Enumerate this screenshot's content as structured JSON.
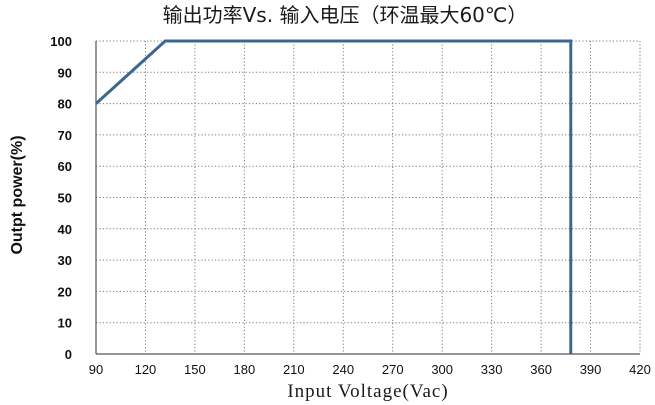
{
  "chart_data": {
    "type": "line",
    "title": "输出功率Vs. 输入电压（环温最大60℃）",
    "xlabel": "Input Voltage(Vac)",
    "ylabel": "Outpt power(%)",
    "xlim": [
      90,
      420
    ],
    "ylim": [
      0,
      100
    ],
    "x_ticks": [
      90,
      120,
      150,
      180,
      210,
      240,
      270,
      300,
      330,
      360,
      390,
      420
    ],
    "x_tick_labels": [
      "90",
      "120",
      "150",
      "180",
      "210",
      "240",
      "270",
      "300",
      "330",
      "360",
      "390",
      "420"
    ],
    "y_ticks": [
      0,
      10,
      20,
      30,
      40,
      50,
      60,
      70,
      80,
      90,
      100
    ],
    "y_tick_labels": [
      "0",
      "10",
      "20",
      "30",
      "40",
      "50",
      "60",
      "70",
      "80",
      "90",
      "100"
    ],
    "grid": "dotted",
    "legend": "none",
    "series": [
      {
        "x": [
          90,
          132,
          132,
          378,
          378
        ],
        "y": [
          80,
          100,
          100,
          100,
          0
        ],
        "color": "#3d6790"
      }
    ]
  }
}
